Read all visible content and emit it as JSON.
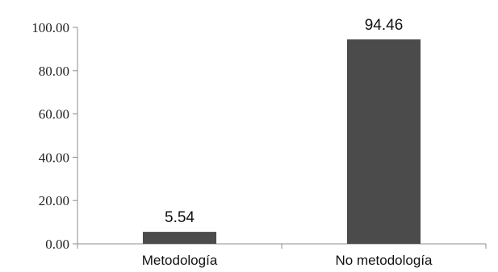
{
  "chart_data": {
    "type": "bar",
    "categories": [
      "Metodología",
      "No metodología"
    ],
    "values": [
      5.54,
      94.46
    ],
    "value_labels": [
      "5.54",
      "94.46"
    ],
    "yticks": [
      "0.00",
      "20.00",
      "40.00",
      "60.00",
      "80.00",
      "100.00"
    ],
    "ylim": [
      0,
      100
    ],
    "grid": false,
    "bar_color": "#4b4b4b",
    "title": "",
    "xlabel": "",
    "ylabel": ""
  }
}
